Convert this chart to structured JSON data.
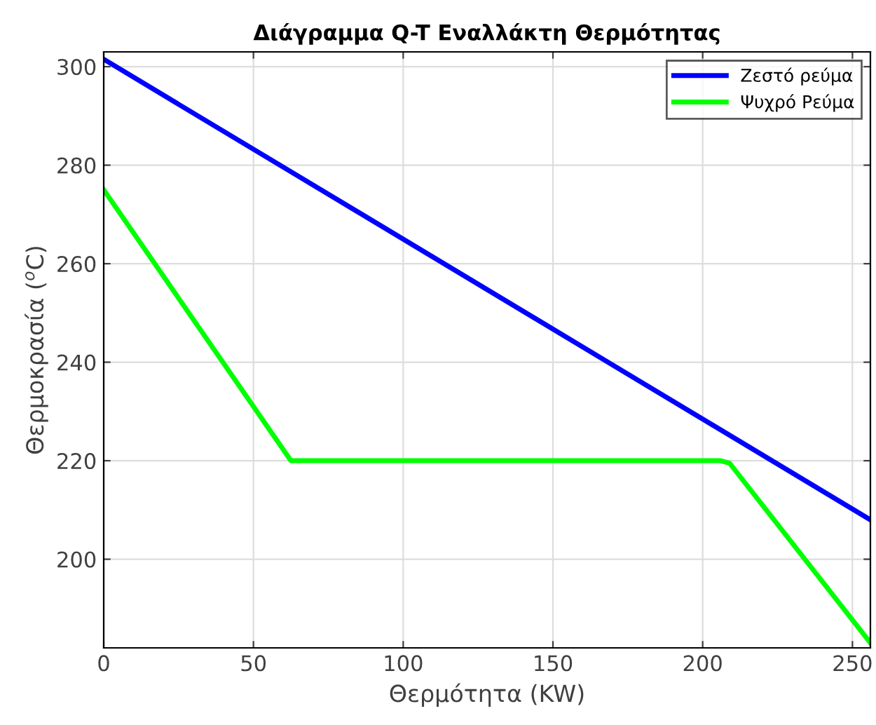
{
  "chart_data": {
    "type": "line",
    "title": "Διάγραμμα Q-T Εναλλάκτη Θερμότητας",
    "xlabel": "Θερμότητα (KW)",
    "ylabel": "Θερμοκρασία ($^{o}$C)",
    "series": [
      {
        "name": "Ζεστό ρεύμα",
        "color": "#0000ff",
        "x": [
          0,
          256
        ],
        "values": [
          301.5,
          208
        ]
      },
      {
        "name": "Ψυχρό Ρεύμα",
        "color": "#00ff00",
        "x": [
          0,
          62.5,
          206,
          209,
          256
        ],
        "values": [
          275,
          220,
          220,
          219.5,
          183
        ]
      }
    ],
    "xlim": [
      0,
      256
    ],
    "ylim": [
      182,
      303
    ],
    "xticks": [
      0,
      50,
      100,
      150,
      200,
      250
    ],
    "yticks": [
      200,
      220,
      240,
      260,
      280,
      300
    ],
    "grid": true,
    "legend": "top right",
    "line_style": "solid",
    "marker": "none"
  }
}
